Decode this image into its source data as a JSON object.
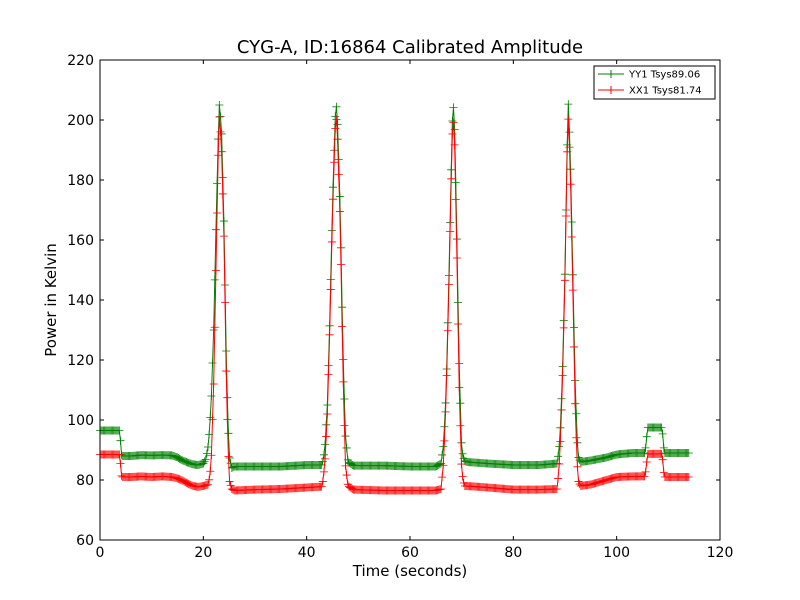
{
  "chart_data": {
    "type": "line",
    "title": "CYG-A, ID:16864 Calibrated Amplitude",
    "xlabel": "Time (seconds)",
    "ylabel": "Power in Kelvin",
    "xlim": [
      0,
      120
    ],
    "ylim": [
      60,
      220
    ],
    "xticks": [
      0,
      20,
      40,
      60,
      80,
      100,
      120
    ],
    "yticks": [
      60,
      80,
      100,
      120,
      140,
      160,
      180,
      200,
      220
    ],
    "grid": false,
    "legend_position": "top-right",
    "marker": "plus",
    "series": [
      {
        "name": "YY1 Tsys89.06",
        "color": "#008000",
        "points": [
          [
            0,
            96.5
          ],
          [
            3.8,
            96.5
          ],
          [
            4.2,
            88
          ],
          [
            6,
            88
          ],
          [
            8,
            88.3
          ],
          [
            10,
            88.2
          ],
          [
            12,
            88.3
          ],
          [
            14,
            88.2
          ],
          [
            15,
            87.5
          ],
          [
            16,
            86.5
          ],
          [
            17,
            85.8
          ],
          [
            18,
            85.2
          ],
          [
            19,
            85
          ],
          [
            20,
            85.5
          ],
          [
            20.5,
            87
          ],
          [
            21,
            92
          ],
          [
            21.5,
            105
          ],
          [
            22,
            130
          ],
          [
            22.5,
            168
          ],
          [
            22.9,
            195
          ],
          [
            23.1,
            205
          ],
          [
            23.5,
            198
          ],
          [
            24,
            165
          ],
          [
            24.5,
            115
          ],
          [
            25,
            88
          ],
          [
            25.5,
            84
          ],
          [
            26,
            84.5
          ],
          [
            30,
            84.5
          ],
          [
            35,
            84.5
          ],
          [
            40,
            85
          ],
          [
            43,
            85
          ],
          [
            43.5,
            90
          ],
          [
            44,
            105
          ],
          [
            44.5,
            135
          ],
          [
            45,
            172
          ],
          [
            45.5,
            200
          ],
          [
            45.7,
            206
          ],
          [
            46,
            198
          ],
          [
            46.5,
            170
          ],
          [
            47,
            125
          ],
          [
            47.5,
            95
          ],
          [
            48,
            86
          ],
          [
            49,
            84.8
          ],
          [
            55,
            84.8
          ],
          [
            60,
            84.5
          ],
          [
            65,
            84.5
          ],
          [
            66,
            85.5
          ],
          [
            66.5,
            92
          ],
          [
            67,
            110
          ],
          [
            67.5,
            145
          ],
          [
            68,
            185
          ],
          [
            68.3,
            207
          ],
          [
            68.6,
            200
          ],
          [
            69,
            168
          ],
          [
            69.5,
            120
          ],
          [
            70,
            90
          ],
          [
            70.5,
            86.5
          ],
          [
            71,
            86
          ],
          [
            75,
            85.5
          ],
          [
            80,
            85
          ],
          [
            85,
            85
          ],
          [
            88.5,
            85.5
          ],
          [
            89,
            93
          ],
          [
            89.5,
            115
          ],
          [
            90,
            150
          ],
          [
            90.4,
            190
          ],
          [
            90.6,
            207
          ],
          [
            91,
            190
          ],
          [
            91.5,
            150
          ],
          [
            92,
            110
          ],
          [
            92.5,
            88
          ],
          [
            93,
            86
          ],
          [
            95,
            86.5
          ],
          [
            98,
            87.5
          ],
          [
            100,
            88.5
          ],
          [
            103,
            89
          ],
          [
            105.5,
            89
          ],
          [
            106,
            97.5
          ],
          [
            108.8,
            97.5
          ],
          [
            109.2,
            89
          ],
          [
            114,
            89
          ]
        ]
      },
      {
        "name": "XX1 Tsys81.74",
        "color": "#ff0000",
        "points": [
          [
            0,
            88.5
          ],
          [
            3.8,
            88.5
          ],
          [
            4.2,
            81
          ],
          [
            6,
            81
          ],
          [
            8,
            81.2
          ],
          [
            10,
            81
          ],
          [
            12,
            81.2
          ],
          [
            14,
            81
          ],
          [
            15,
            80.5
          ],
          [
            16,
            79.8
          ],
          [
            17,
            78.8
          ],
          [
            18,
            78
          ],
          [
            19,
            77.7
          ],
          [
            20,
            78
          ],
          [
            21,
            78.5
          ],
          [
            21.5,
            85
          ],
          [
            22,
            112
          ],
          [
            22.5,
            155
          ],
          [
            22.9,
            190
          ],
          [
            23.1,
            201
          ],
          [
            23.5,
            192
          ],
          [
            24,
            160
          ],
          [
            24.5,
            108
          ],
          [
            25,
            80
          ],
          [
            25.5,
            77
          ],
          [
            26,
            76.5
          ],
          [
            30,
            76.8
          ],
          [
            35,
            77
          ],
          [
            40,
            77.5
          ],
          [
            43,
            77.8
          ],
          [
            43.5,
            85
          ],
          [
            44,
            102
          ],
          [
            44.5,
            132
          ],
          [
            45,
            168
          ],
          [
            45.5,
            196
          ],
          [
            45.7,
            202
          ],
          [
            46,
            193
          ],
          [
            46.5,
            165
          ],
          [
            47,
            118
          ],
          [
            47.5,
            85
          ],
          [
            48,
            78
          ],
          [
            49,
            76.8
          ],
          [
            55,
            76.5
          ],
          [
            60,
            76.5
          ],
          [
            65,
            76.5
          ],
          [
            66,
            77
          ],
          [
            66.5,
            86
          ],
          [
            67,
            108
          ],
          [
            67.5,
            142
          ],
          [
            68,
            182
          ],
          [
            68.3,
            202
          ],
          [
            68.6,
            195
          ],
          [
            69,
            162
          ],
          [
            69.5,
            112
          ],
          [
            70,
            83
          ],
          [
            70.5,
            78
          ],
          [
            71,
            78
          ],
          [
            75,
            77.5
          ],
          [
            80,
            76.8
          ],
          [
            85,
            76.8
          ],
          [
            88.5,
            77
          ],
          [
            89,
            88
          ],
          [
            89.5,
            112
          ],
          [
            90,
            148
          ],
          [
            90.4,
            188
          ],
          [
            90.6,
            202
          ],
          [
            91,
            185
          ],
          [
            91.5,
            145
          ],
          [
            92,
            102
          ],
          [
            92.5,
            80
          ],
          [
            93,
            78
          ],
          [
            95,
            78.5
          ],
          [
            98,
            80
          ],
          [
            100,
            81
          ],
          [
            103,
            81.2
          ],
          [
            105.5,
            81.2
          ],
          [
            106,
            88.7
          ],
          [
            108.8,
            88.7
          ],
          [
            109.2,
            81
          ],
          [
            114,
            81
          ]
        ]
      }
    ]
  }
}
